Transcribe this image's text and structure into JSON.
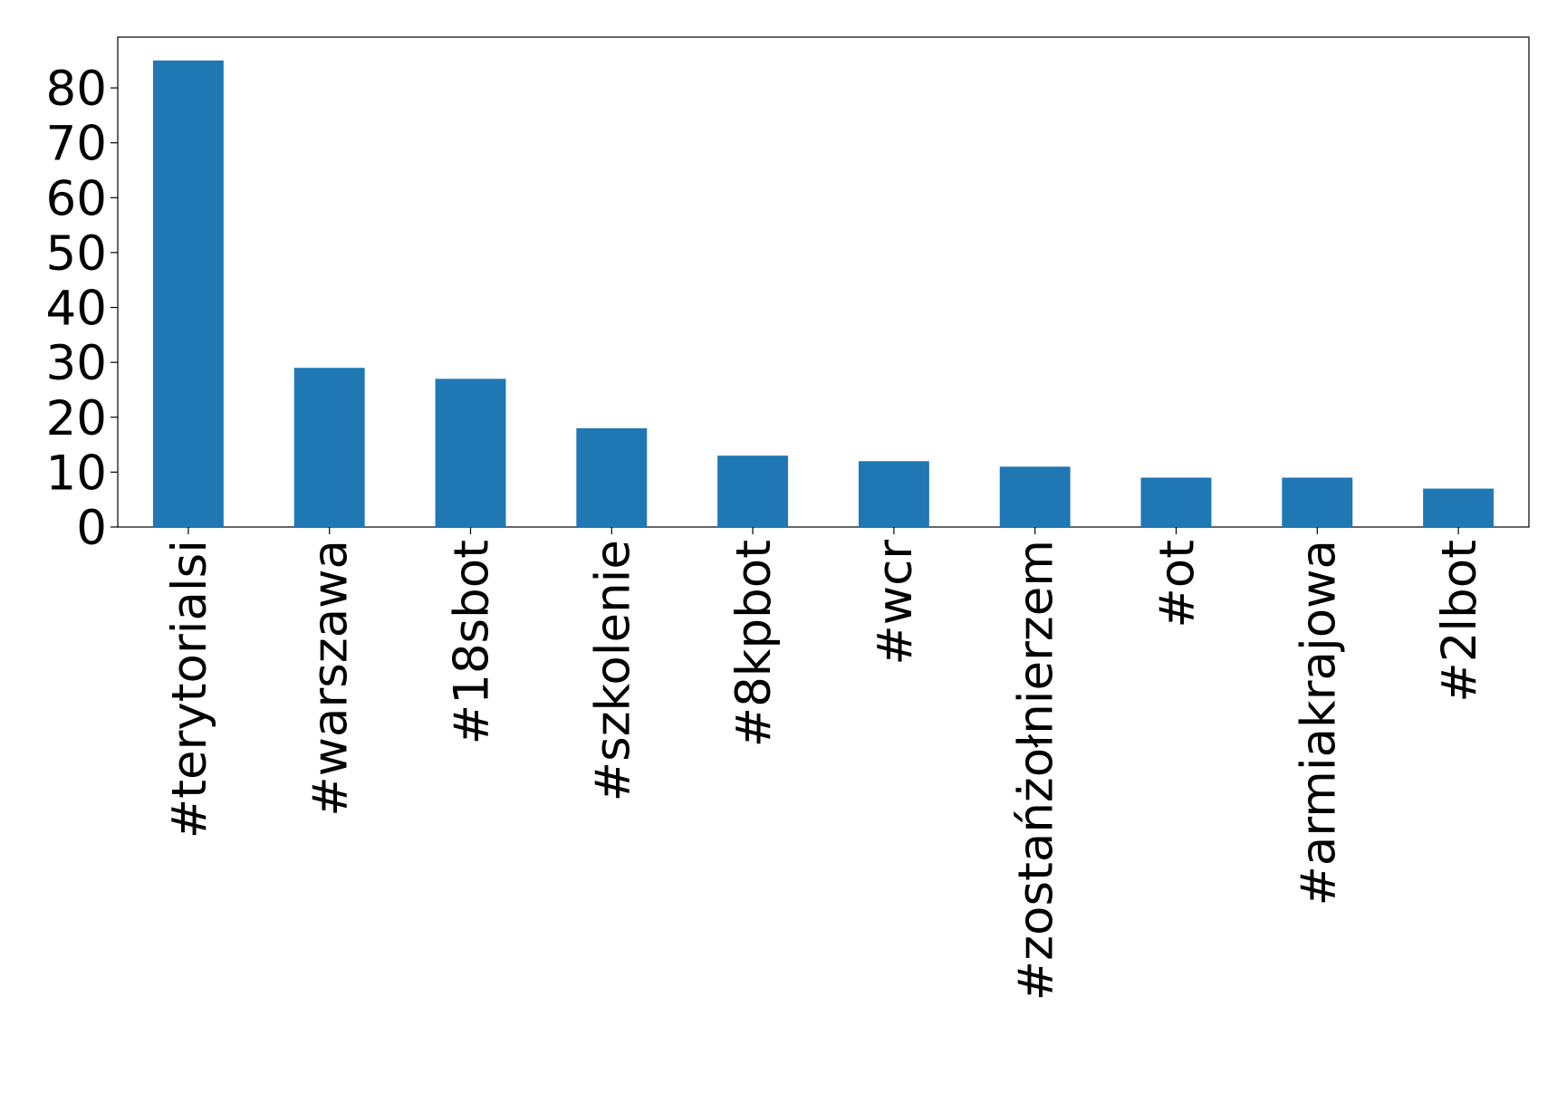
{
  "chart_data": {
    "type": "bar",
    "categories": [
      "#terytorialsi",
      "#warszawa",
      "#18sbot",
      "#szkolenie",
      "#8kpbot",
      "#wcr",
      "#zostańżołnierzem",
      "#ot",
      "#armiakrajowa",
      "#2lbot"
    ],
    "values": [
      85,
      29,
      27,
      18,
      13,
      12,
      11,
      9,
      9,
      7
    ],
    "color": "#1f77b4",
    "ylim": [
      0,
      89.25
    ],
    "yticks": [
      0,
      10,
      20,
      30,
      40,
      50,
      60,
      70,
      80
    ],
    "grid": false
  }
}
